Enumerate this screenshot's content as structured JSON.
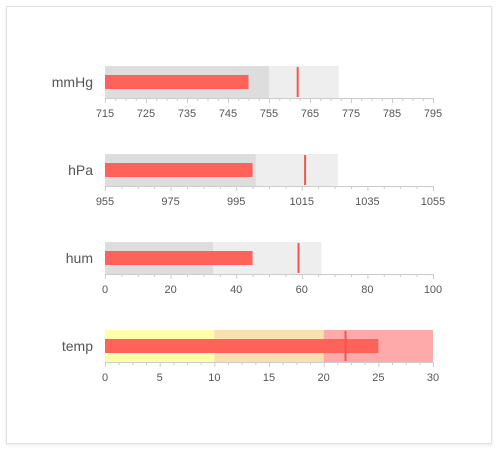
{
  "chart_data": [
    {
      "type": "bullet",
      "label": "mmHg",
      "ticks": [
        715,
        725,
        735,
        745,
        755,
        765,
        775,
        785,
        795
      ],
      "domain": [
        715,
        795
      ],
      "ranges": [
        {
          "to": 755,
          "color": "#dddddd"
        },
        {
          "to": 772,
          "color": "#eeeeee"
        }
      ],
      "value": 750,
      "marker": 762
    },
    {
      "type": "bullet",
      "label": "hPa",
      "ticks": [
        955,
        975,
        995,
        1015,
        1035,
        1055
      ],
      "domain": [
        955,
        1055
      ],
      "ranges": [
        {
          "to": 1001,
          "color": "#dddddd"
        },
        {
          "to": 1026,
          "color": "#eeeeee"
        }
      ],
      "value": 1000,
      "marker": 1016
    },
    {
      "type": "bullet",
      "label": "hum",
      "ticks": [
        0,
        20,
        40,
        60,
        80,
        100
      ],
      "domain": [
        0,
        100
      ],
      "ranges": [
        {
          "to": 33,
          "color": "#dddddd"
        },
        {
          "to": 66,
          "color": "#eeeeee"
        }
      ],
      "value": 45,
      "marker": 59
    },
    {
      "type": "bullet",
      "label": "temp",
      "ticks": [
        0,
        5,
        10,
        15,
        20,
        25,
        30
      ],
      "domain": [
        0,
        30
      ],
      "ranges": [
        {
          "to": 10,
          "color": "#ffffaa"
        },
        {
          "to": 20,
          "color": "#f8e0b0"
        },
        {
          "to": 30,
          "color": "#ffaaaa"
        }
      ],
      "value": 25,
      "marker": 22
    }
  ],
  "colors": {
    "bar": "#ff6258",
    "marker": "#f5554c",
    "axis": "#cccccc"
  }
}
